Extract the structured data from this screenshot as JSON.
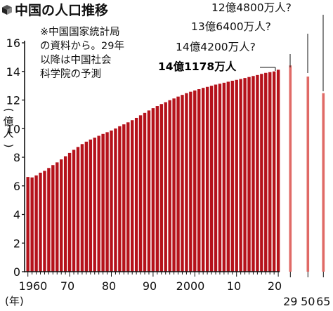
{
  "title": "中国の人口推移",
  "note": [
    "※中国国家統計局",
    "の資料から。29年",
    "以降は中国社会",
    "科学院の予測"
  ],
  "colors": {
    "bar": "#b5121b",
    "projection": "#e06a66"
  },
  "chart_data": {
    "type": "bar",
    "ylabel": "(億人)",
    "xlabel": "(年)",
    "ylim": [
      0,
      16
    ],
    "yticks": [
      0,
      2,
      4,
      6,
      8,
      10,
      12,
      14,
      16
    ],
    "grid": false,
    "x_tick_labels": [
      "1960",
      "70",
      "80",
      "90",
      "2000",
      "10",
      "20"
    ],
    "projection_tick_labels": [
      "29",
      "50",
      "65"
    ],
    "series": [
      {
        "years": [
          1960,
          1961,
          1962,
          1963,
          1964,
          1965,
          1966,
          1967,
          1968,
          1969,
          1970,
          1971,
          1972,
          1973,
          1974,
          1975,
          1976,
          1977,
          1978,
          1979,
          1980,
          1981,
          1982,
          1983,
          1984,
          1985,
          1986,
          1987,
          1988,
          1989,
          1990,
          1991,
          1992,
          1993,
          1994,
          1995,
          1996,
          1997,
          1998,
          1999,
          2000,
          2001,
          2002,
          2003,
          2004,
          2005,
          2006,
          2007,
          2008,
          2009,
          2010,
          2011,
          2012,
          2013,
          2014,
          2015,
          2016,
          2017,
          2018,
          2019,
          2020
        ],
        "values": [
          6.62,
          6.59,
          6.73,
          6.92,
          7.05,
          7.25,
          7.45,
          7.64,
          7.85,
          8.07,
          8.3,
          8.52,
          8.72,
          8.92,
          9.09,
          9.24,
          9.37,
          9.5,
          9.63,
          9.75,
          9.87,
          10.01,
          10.17,
          10.3,
          10.44,
          10.59,
          10.75,
          10.93,
          11.1,
          11.27,
          11.43,
          11.58,
          11.72,
          11.85,
          11.99,
          12.11,
          12.24,
          12.36,
          12.48,
          12.58,
          12.67,
          12.76,
          12.85,
          12.92,
          13.0,
          13.08,
          13.14,
          13.21,
          13.28,
          13.35,
          13.41,
          13.47,
          13.54,
          13.61,
          13.68,
          13.75,
          13.83,
          13.9,
          13.95,
          14.0,
          14.1178
        ]
      },
      {
        "years": [
          2029,
          2050,
          2065
        ],
        "values": [
          14.42,
          13.64,
          12.48
        ]
      }
    ],
    "annotations": [
      {
        "year": 2020,
        "text": "14億1178万人"
      },
      {
        "year": 2029,
        "text": "14億4200万人?"
      },
      {
        "year": 2050,
        "text": "13億6400万人?"
      },
      {
        "year": 2065,
        "text": "12億4800万人?"
      }
    ]
  }
}
